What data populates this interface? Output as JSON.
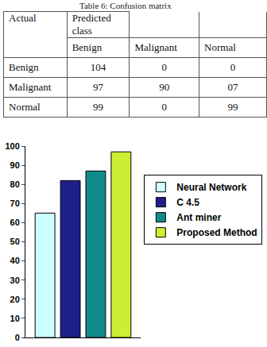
{
  "caption": "Table 6: Confusion matrix",
  "table": {
    "corner": "Actual",
    "group": "Predicted class",
    "header": [
      "Benign",
      "Malignant",
      "Normal"
    ],
    "rows": [
      [
        "Benign",
        "104",
        "0",
        "0"
      ],
      [
        "Malignant",
        "97",
        "90",
        "07"
      ],
      [
        "Normal",
        "99",
        "0",
        "99"
      ]
    ]
  },
  "chart_data": {
    "type": "bar",
    "categories": [
      null
    ],
    "series": [
      {
        "name": "Neural Network",
        "color": "#ccffff",
        "values": [
          65
        ]
      },
      {
        "name": "C 4.5",
        "color": "#1f1f8c",
        "values": [
          82
        ]
      },
      {
        "name": "Ant miner",
        "color": "#0f8a8a",
        "values": [
          87
        ]
      },
      {
        "name": "Proposed Method",
        "color": "#ccee33",
        "values": [
          97
        ]
      }
    ],
    "ylim": [
      0,
      100
    ],
    "yticks": [
      0,
      10,
      20,
      30,
      40,
      50,
      60,
      70,
      80,
      90,
      100
    ],
    "grid": false,
    "legend": "right",
    "tick_labels": "y"
  }
}
